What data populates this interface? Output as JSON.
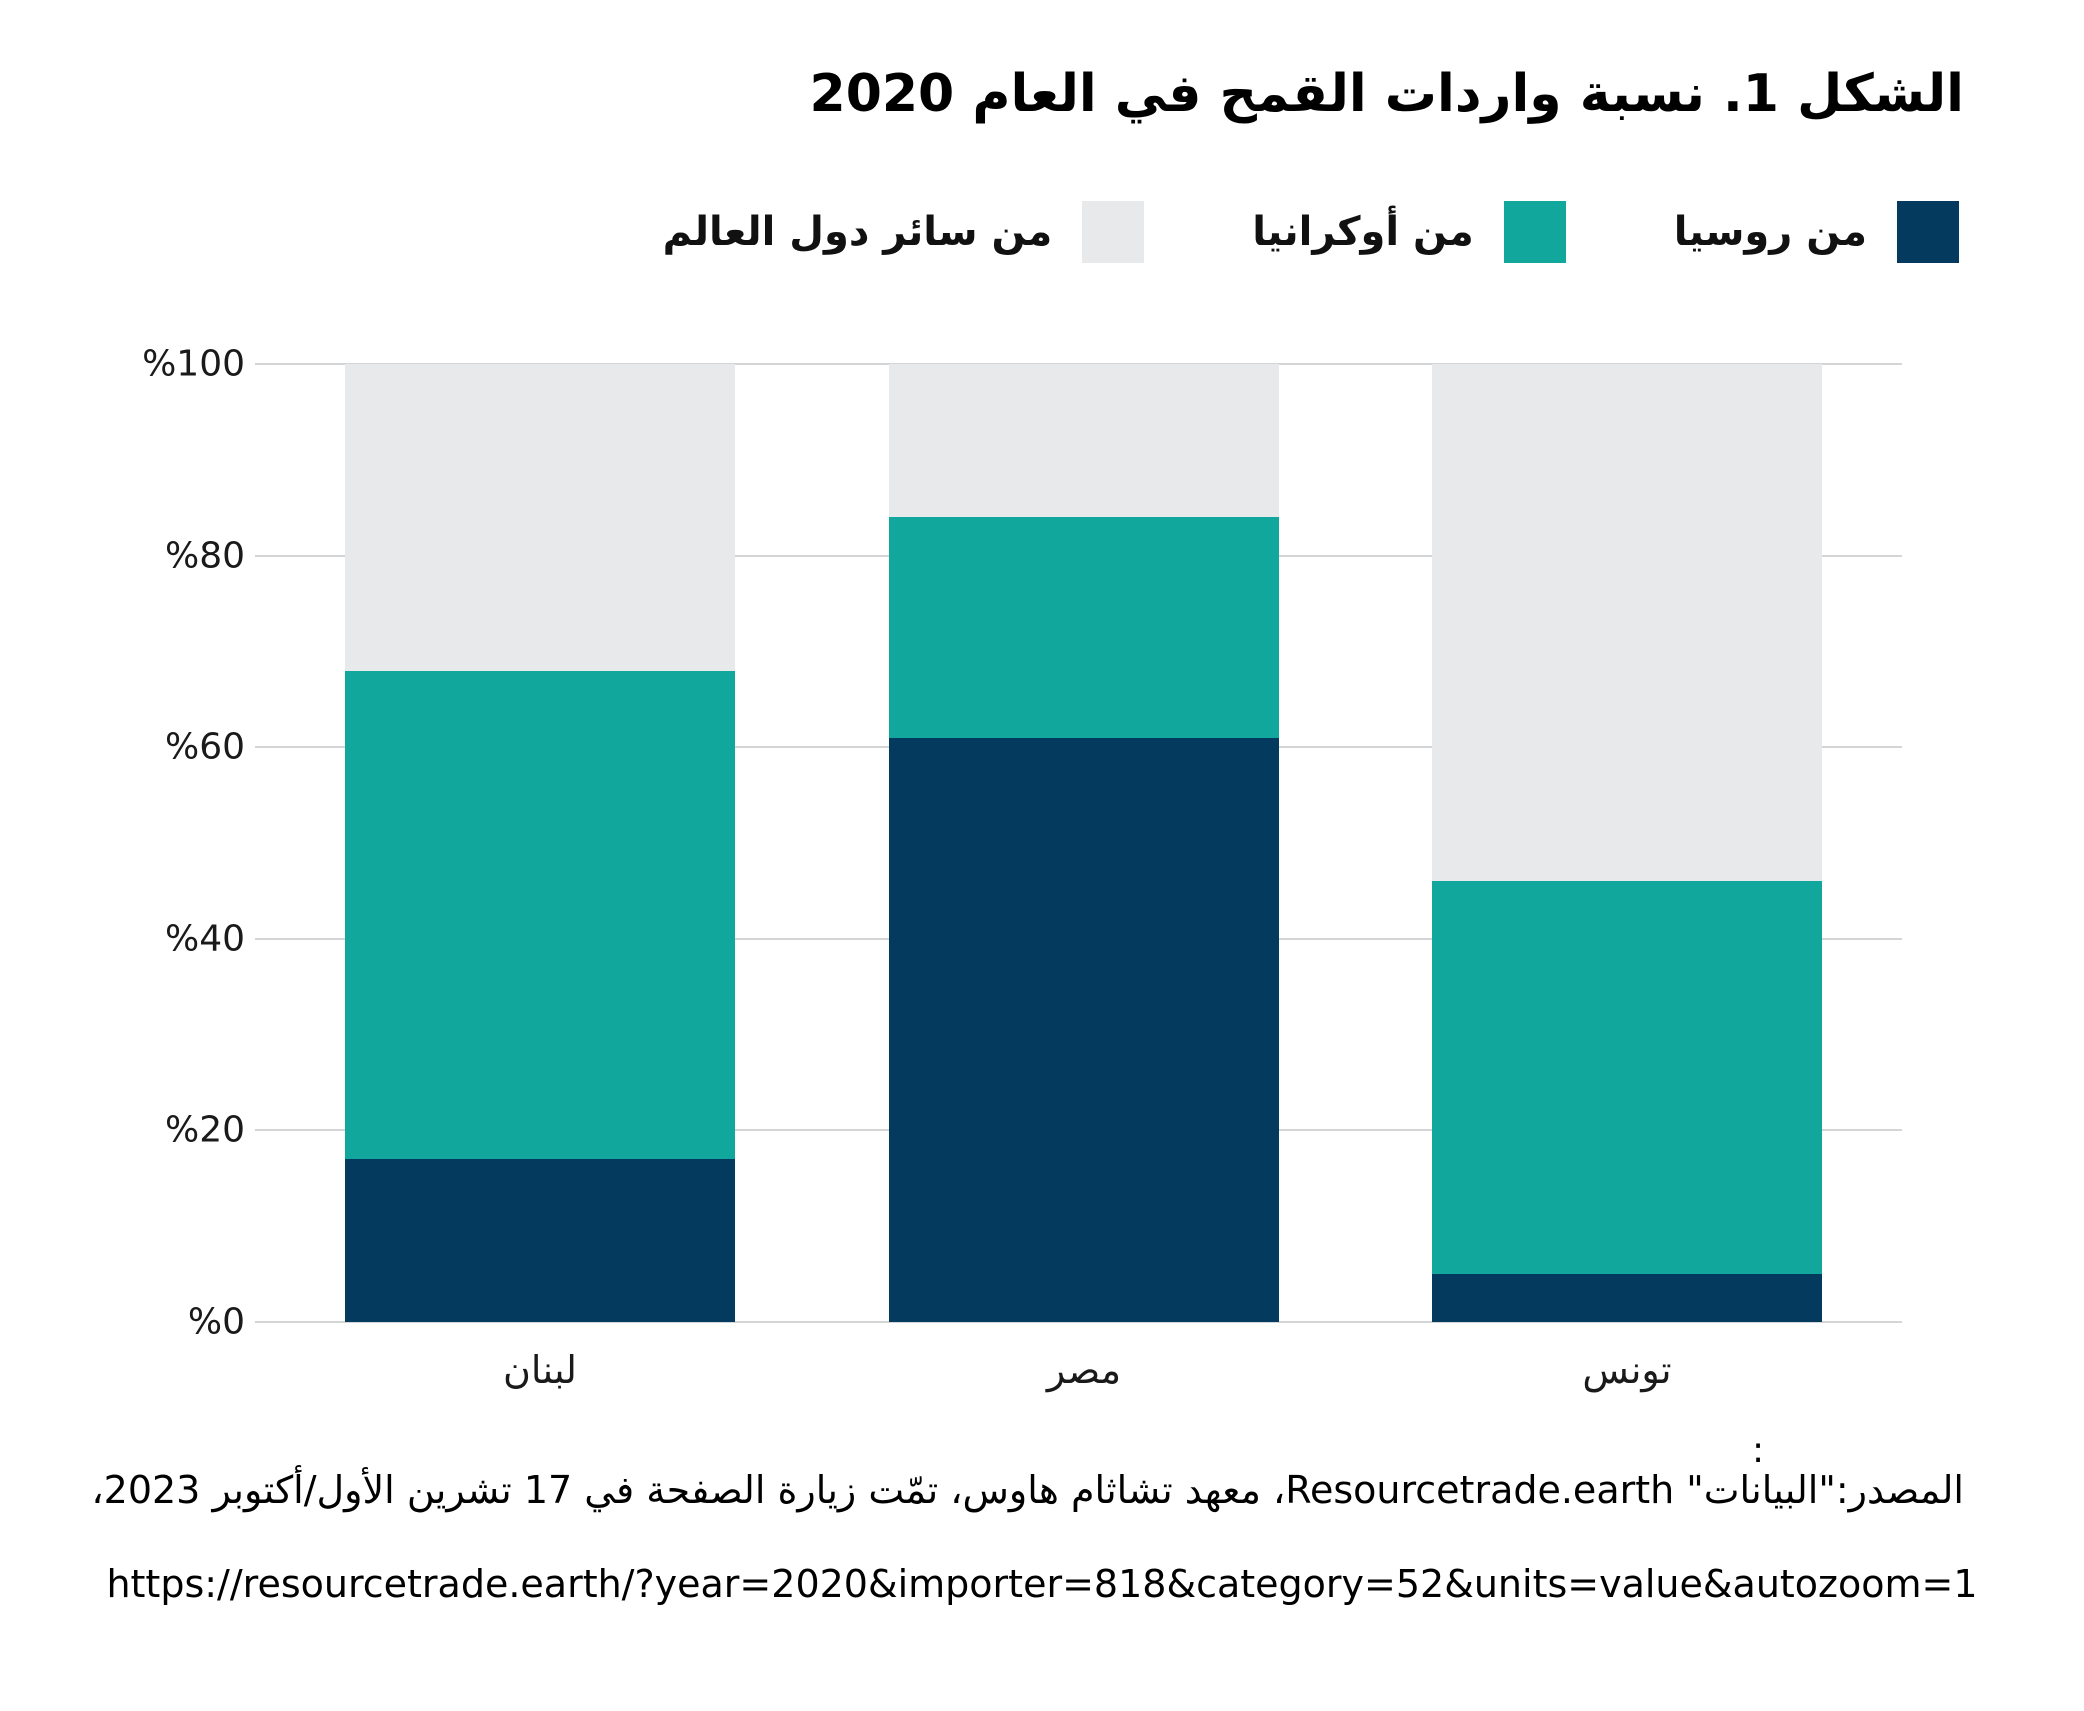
{
  "figure": {
    "title": "الشكل 1. نسبة واردات القمح في العام 2020"
  },
  "legend": {
    "items": [
      {
        "key": "russia",
        "label": "من روسيا",
        "color": "#053a5f"
      },
      {
        "key": "ukraine",
        "label": "من أوكرانيا",
        "color": "#11a79c"
      },
      {
        "key": "world",
        "label": "من سائر دول العالم",
        "color": "#e7e9ea"
      }
    ]
  },
  "chart_data": {
    "type": "bar",
    "stacked": true,
    "orientation": "vertical",
    "categories": [
      "لبنان",
      "مصر",
      "تونس"
    ],
    "series": [
      {
        "key": "russia",
        "name": "من روسيا",
        "color": "#053a5f",
        "values": [
          17,
          61,
          5
        ]
      },
      {
        "key": "ukraine",
        "name": "من أوكرانيا",
        "color": "#11a79c",
        "values": [
          51,
          23,
          41
        ]
      },
      {
        "key": "world",
        "name": "من سائر دول العالم",
        "color": "#e7e9ea",
        "values": [
          32,
          16,
          54
        ]
      }
    ],
    "units": "percent",
    "ylim": [
      0,
      100
    ],
    "yticks": [
      "%0",
      "%20",
      "%40",
      "%60",
      "%80",
      "%100"
    ],
    "grid": true,
    "legend_position": "top-right",
    "gridline_color": "#d3d5d7"
  },
  "footer": {
    "colon": ":",
    "source": "المصدر:\"البيانات\" Resourcetrade.earth، معهد تشاثام هاوس، تمّت زيارة الصفحة في 17 تشرين الأول/أكتوبر 2023،",
    "url": "https://resourcetrade.earth/?year=2020&importer=818&category=52&units=value&autozoom=1"
  }
}
